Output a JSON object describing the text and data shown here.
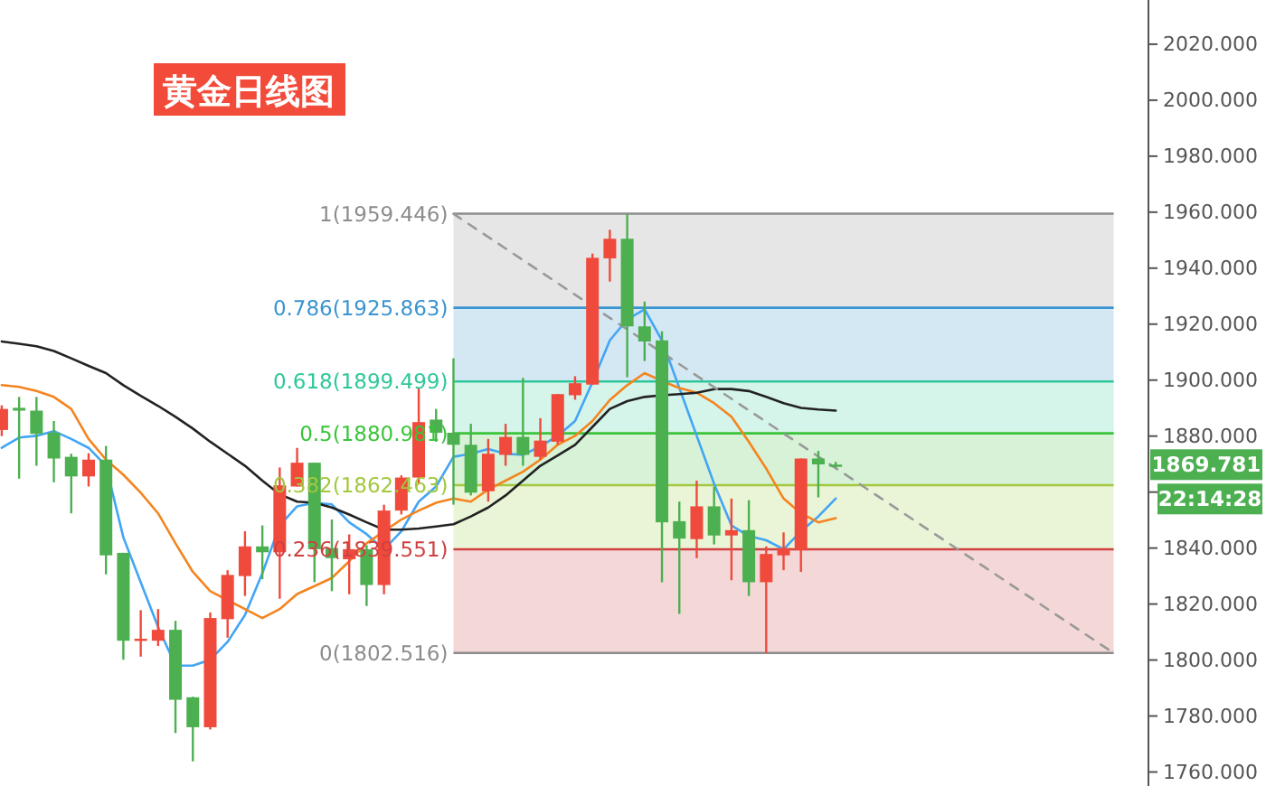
{
  "chart_data": {
    "type": "candlestick",
    "title": "黄金日线图",
    "categories": [
      null,
      null,
      null,
      null,
      null,
      null,
      null,
      null,
      null,
      null,
      null,
      null,
      null,
      null,
      null,
      null,
      null,
      null,
      null,
      null,
      null,
      null,
      null,
      null,
      null,
      null,
      null,
      null,
      null,
      null,
      null,
      null,
      null,
      null,
      null,
      null,
      null,
      null,
      null,
      null,
      null,
      null,
      null,
      null,
      null,
      null,
      null,
      null,
      null,
      null,
      null,
      null,
      null,
      null,
      null,
      null,
      null,
      null,
      null,
      null,
      null,
      null,
      null,
      null,
      null,
      null,
      null
    ],
    "ohlc": [
      [
        1882.2,
        1891.0,
        1880.0,
        1889.7
      ],
      [
        1890.1,
        1894.0,
        1864.8,
        1889.1
      ],
      [
        1889.1,
        1894.0,
        1869.4,
        1880.8
      ],
      [
        1881.2,
        1885.4,
        1863.5,
        1872.0
      ],
      [
        1872.6,
        1873.7,
        1852.4,
        1865.6
      ],
      [
        1865.6,
        1873.9,
        1862.0,
        1871.6
      ],
      [
        1871.6,
        1876.5,
        1830.6,
        1837.4
      ],
      [
        1838.3,
        1838.3,
        1800.1,
        1806.9
      ],
      [
        1806.9,
        1817.8,
        1801.2,
        1807.6
      ],
      [
        1806.9,
        1818.2,
        1805.0,
        1810.8
      ],
      [
        1810.8,
        1814.0,
        1773.9,
        1785.8
      ],
      [
        1786.7,
        1786.9,
        1763.8,
        1776.0
      ],
      [
        1776.0,
        1817.0,
        1775.2,
        1815.0
      ],
      [
        1814.6,
        1832.1,
        1808.0,
        1830.4
      ],
      [
        1830.0,
        1846.0,
        1822.9,
        1840.6
      ],
      [
        1840.6,
        1848.1,
        1828.9,
        1838.5
      ],
      [
        1838.5,
        1868.8,
        1821.9,
        1862.4
      ],
      [
        1862.0,
        1875.8,
        1862.0,
        1870.5
      ],
      [
        1870.5,
        1870.5,
        1827.8,
        1839.6
      ],
      [
        1840.0,
        1850.2,
        1824.6,
        1836.4
      ],
      [
        1836.0,
        1844.9,
        1823.5,
        1839.6
      ],
      [
        1839.6,
        1841.0,
        1819.3,
        1826.8
      ],
      [
        1826.8,
        1855.5,
        1823.5,
        1853.4
      ],
      [
        1853.4,
        1866.0,
        1852.0,
        1865.2
      ],
      [
        1865.2,
        1897.2,
        1863.0,
        1885.0
      ],
      [
        1885.9,
        1889.7,
        1878.0,
        1881.2
      ],
      [
        1881.2,
        1907.8,
        1855.5,
        1876.9
      ],
      [
        1876.9,
        1884.4,
        1858.8,
        1859.8
      ],
      [
        1860.3,
        1879.0,
        1856.6,
        1873.7
      ],
      [
        1873.3,
        1884.4,
        1869.4,
        1879.7
      ],
      [
        1879.7,
        1900.8,
        1869.4,
        1873.3
      ],
      [
        1872.6,
        1886.4,
        1871.6,
        1878.4
      ],
      [
        1878.0,
        1895.0,
        1876.9,
        1895.0
      ],
      [
        1894.6,
        1901.4,
        1893.0,
        1898.9
      ],
      [
        1898.4,
        1945.2,
        1898.4,
        1943.7
      ],
      [
        1943.5,
        1953.7,
        1935.2,
        1950.5
      ],
      [
        1950.5,
        1959.4,
        1901.0,
        1919.2
      ],
      [
        1919.2,
        1928.1,
        1906.8,
        1913.8
      ],
      [
        1914.2,
        1917.4,
        1827.8,
        1849.2
      ],
      [
        1849.6,
        1856.6,
        1816.5,
        1843.4
      ],
      [
        1843.2,
        1864.1,
        1836.4,
        1854.9
      ],
      [
        1854.9,
        1861.9,
        1841.3,
        1844.5
      ],
      [
        1844.5,
        1857.7,
        1828.5,
        1846.4
      ],
      [
        1846.4,
        1857.1,
        1822.9,
        1827.8
      ],
      [
        1827.8,
        1840.6,
        1802.5,
        1837.9
      ],
      [
        1837.4,
        1845.6,
        1832.1,
        1840.0
      ],
      [
        1839.2,
        1872.0,
        1831.5,
        1872.0
      ],
      [
        1872.0,
        1874.7,
        1858.1,
        1869.9
      ],
      [
        1869.8,
        1870.8,
        1868.8,
        1869.8
      ],
      null,
      null,
      null,
      null,
      null,
      null,
      null,
      null,
      null,
      null,
      null,
      null,
      null,
      null,
      null,
      null,
      null,
      null
    ],
    "colors": [
      "#ef4a3c",
      "#4caf50",
      "#4caf50",
      "#4caf50",
      "#4caf50",
      "#ef4a3c",
      "#4caf50",
      "#4caf50",
      "#ef4a3c",
      "#ef4a3c",
      "#4caf50",
      "#4caf50",
      "#ef4a3c",
      "#ef4a3c",
      "#ef4a3c",
      "#4caf50",
      "#ef4a3c",
      "#ef4a3c",
      "#4caf50",
      "#4caf50",
      "#ef4a3c",
      "#4caf50",
      "#ef4a3c",
      "#ef4a3c",
      "#ef4a3c",
      "#4caf50",
      "#4caf50",
      "#4caf50",
      "#ef4a3c",
      "#ef4a3c",
      "#4caf50",
      "#ef4a3c",
      "#ef4a3c",
      "#ef4a3c",
      "#ef4a3c",
      "#ef4a3c",
      "#4caf50",
      "#4caf50",
      "#4caf50",
      "#4caf50",
      "#ef4a3c",
      "#4caf50",
      "#ef4a3c",
      "#4caf50",
      "#ef4a3c",
      "#ef4a3c",
      "#ef4a3c",
      "#4caf50",
      "#4caf50",
      null,
      null,
      null,
      null,
      null,
      null,
      null,
      null,
      null,
      null,
      null,
      null,
      null,
      null,
      null,
      null,
      null,
      null
    ],
    "series": [
      {
        "type": "line",
        "color": "#42a5f5",
        "values": [
          1875.8,
          1879.5,
          1880.1,
          1881.8,
          1879.0,
          1875.8,
          1869.4,
          1843.8,
          1827.8,
          1811.8,
          1798.0,
          1798.0,
          1800.1,
          1806.5,
          1816.1,
          1831.0,
          1848.1,
          1854.9,
          1856.2,
          1855.6,
          1849.2,
          1845.0,
          1839.5,
          1846.0,
          1856.6,
          1862.0,
          1872.6,
          1873.7,
          1875.4,
          1873.7,
          1873.3,
          1876.3,
          1880.1,
          1885.4,
          1899.3,
          1914.2,
          1921.7,
          1925.3,
          1914.2,
          1897.2,
          1880.1,
          1863.0,
          1848.1,
          1844.3,
          1842.8,
          1839.6,
          1846.0,
          1851.3,
          1857.7,
          null,
          null,
          null,
          null,
          null,
          null,
          null,
          null,
          null,
          null,
          null,
          null,
          null,
          null,
          null,
          null,
          null,
          null
        ]
      },
      {
        "type": "line",
        "color": "#f5841f",
        "values": [
          1898.2,
          1897.6,
          1896.1,
          1894.0,
          1889.7,
          1879.0,
          1871.6,
          1866.2,
          1859.8,
          1852.4,
          1841.7,
          1831.5,
          1824.6,
          1821.4,
          1818.2,
          1815.0,
          1818.2,
          1823.6,
          1826.4,
          1829.3,
          1835.3,
          1841.7,
          1846.0,
          1850.2,
          1853.4,
          1856.2,
          1857.7,
          1856.6,
          1860.9,
          1864.1,
          1867.3,
          1871.6,
          1876.9,
          1880.1,
          1885.4,
          1892.9,
          1898.2,
          1902.5,
          1899.7,
          1897.2,
          1895.5,
          1891.8,
          1886.9,
          1878.0,
          1868.4,
          1857.7,
          1852.4,
          1849.2,
          1850.7,
          null,
          null,
          null,
          null,
          null,
          null,
          null,
          null,
          null,
          null,
          null,
          null,
          null,
          null,
          null,
          null,
          null,
          null
        ]
      },
      {
        "type": "line",
        "color": "#222222",
        "values": [
          1913.8,
          1913.0,
          1912.1,
          1910.4,
          1907.8,
          1905.1,
          1902.5,
          1898.2,
          1894.4,
          1890.8,
          1886.9,
          1882.7,
          1878.0,
          1873.7,
          1869.4,
          1864.1,
          1859.2,
          1856.6,
          1856.2,
          1854.5,
          1852.0,
          1849.2,
          1846.6,
          1846.6,
          1847.0,
          1847.7,
          1848.5,
          1851.3,
          1854.5,
          1858.8,
          1864.1,
          1869.4,
          1873.1,
          1876.9,
          1883.3,
          1889.7,
          1892.5,
          1894.0,
          1894.6,
          1895.0,
          1895.5,
          1896.8,
          1896.8,
          1896.1,
          1894.0,
          1891.8,
          1890.1,
          1889.5,
          1889.1,
          null,
          null,
          null,
          null,
          null,
          null,
          null,
          null,
          null,
          null,
          null,
          null,
          null,
          null,
          null,
          null,
          null,
          null
        ]
      },
      {
        "type": "line",
        "color": "#999999",
        "line_style": "dashed",
        "values": [
          null,
          null,
          null,
          null,
          null,
          null,
          null,
          null,
          null,
          null,
          null,
          null,
          null,
          null,
          null,
          null,
          null,
          null,
          null,
          null,
          null,
          null,
          null,
          null,
          null,
          null,
          1959.4,
          null,
          null,
          null,
          null,
          null,
          null,
          null,
          null,
          null,
          null,
          null,
          null,
          null,
          null,
          null,
          null,
          null,
          null,
          null,
          null,
          null,
          null,
          null,
          null,
          null,
          null,
          null,
          null,
          null,
          null,
          null,
          null,
          null,
          null,
          null,
          null,
          null,
          1802.5,
          null,
          null
        ]
      }
    ],
    "bands": [
      {
        "axis": "y",
        "from": 1925.863,
        "to": 1959.446,
        "color": "#e6e6e6"
      },
      {
        "axis": "y",
        "from": 1899.499,
        "to": 1925.863,
        "color": "#d4e8f4"
      },
      {
        "axis": "y",
        "from": 1880.981,
        "to": 1899.499,
        "color": "#d5f4ea"
      },
      {
        "axis": "y",
        "from": 1862.463,
        "to": 1880.981,
        "color": "#d7f2d7"
      },
      {
        "axis": "y",
        "from": 1839.551,
        "to": 1862.463,
        "color": "#eaf4d6"
      },
      {
        "axis": "y",
        "from": 1802.516,
        "to": 1839.551,
        "color": "#f4d7d7"
      }
    ],
    "ref_lines": [
      {
        "axis": "y",
        "value": 1959.446,
        "label": "1(1959.446)",
        "color": "#8c8c8c"
      },
      {
        "axis": "y",
        "value": 1925.863,
        "label": "0.786(1925.863)",
        "color": "#3a94d0"
      },
      {
        "axis": "y",
        "value": 1899.499,
        "label": "0.618(1899.499)",
        "color": "#2ec79a"
      },
      {
        "axis": "y",
        "value": 1880.981,
        "label": "0.5(1880.981)",
        "color": "#3ac43a"
      },
      {
        "axis": "y",
        "value": 1862.463,
        "label": "0.382(1862.463)",
        "color": "#a2c83e"
      },
      {
        "axis": "y",
        "value": 1839.551,
        "label": "0.236(1839.551)",
        "color": "#d04040"
      },
      {
        "axis": "y",
        "value": 1802.516,
        "label": "0(1802.516)",
        "color": "#8c8c8c"
      }
    ],
    "ylim": [
      1755,
      2035.8
    ],
    "yticks": [
      {
        "value": 1760,
        "label": "1760.000"
      },
      {
        "value": 1780,
        "label": "1780.000"
      },
      {
        "value": 1800,
        "label": "1800.000"
      },
      {
        "value": 1820,
        "label": "1820.000"
      },
      {
        "value": 1840,
        "label": "1840.000"
      },
      {
        "value": 1860,
        "label": null
      },
      {
        "value": 1880,
        "label": "1880.000"
      },
      {
        "value": 1900,
        "label": "1900.000"
      },
      {
        "value": 1920,
        "label": "1920.000"
      },
      {
        "value": 1940,
        "label": "1940.000"
      },
      {
        "value": 1960,
        "label": "1960.000"
      },
      {
        "value": 1980,
        "label": "1980.000"
      },
      {
        "value": 2000,
        "label": "2000.000"
      },
      {
        "value": 2020,
        "label": "2020.000"
      }
    ],
    "annotations": [
      "1869.781",
      "22:14:28"
    ]
  }
}
